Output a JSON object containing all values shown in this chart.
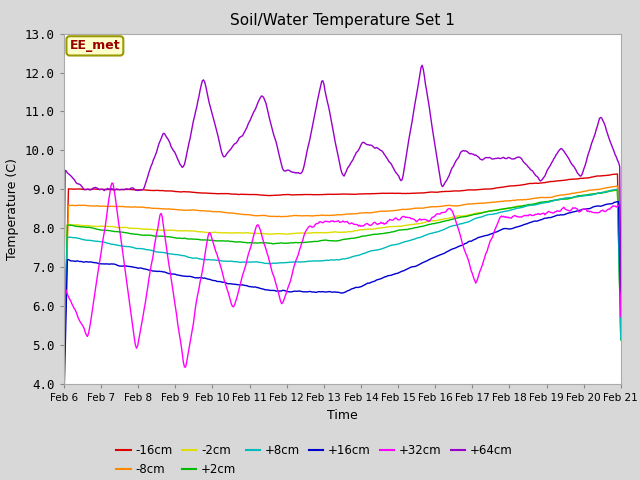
{
  "title": "Soil/Water Temperature Set 1",
  "xlabel": "Time",
  "ylabel": "Temperature (C)",
  "ylim": [
    4.0,
    13.0
  ],
  "yticks": [
    4.0,
    5.0,
    6.0,
    7.0,
    8.0,
    9.0,
    10.0,
    11.0,
    12.0,
    13.0
  ],
  "xtick_labels": [
    "Feb 6",
    "Feb 7",
    "Feb 8",
    "Feb 9",
    "Feb 10",
    "Feb 11",
    "Feb 12",
    "Feb 13",
    "Feb 14",
    "Feb 15",
    "Feb 16",
    "Feb 17",
    "Feb 18",
    "Feb 19",
    "Feb 20",
    "Feb 21"
  ],
  "annotation_text": "EE_met",
  "annotation_color": "#990000",
  "annotation_bg": "#ffffcc",
  "annotation_border": "#999900",
  "series": [
    {
      "label": "-16cm",
      "color": "#dd0000"
    },
    {
      "label": "-8cm",
      "color": "#ff8800"
    },
    {
      "label": "-2cm",
      "color": "#dddd00"
    },
    {
      "label": "+2cm",
      "color": "#00bb00"
    },
    {
      "label": "+8cm",
      "color": "#00bbbb"
    },
    {
      "label": "+16cm",
      "color": "#0000cc"
    },
    {
      "label": "+32cm",
      "color": "#ff00ff"
    },
    {
      "label": "+64cm",
      "color": "#9900cc"
    }
  ],
  "fig_bg": "#d8d8d8",
  "plot_bg": "#d8d8d8",
  "grid_color": "#ffffff",
  "n_points": 500
}
